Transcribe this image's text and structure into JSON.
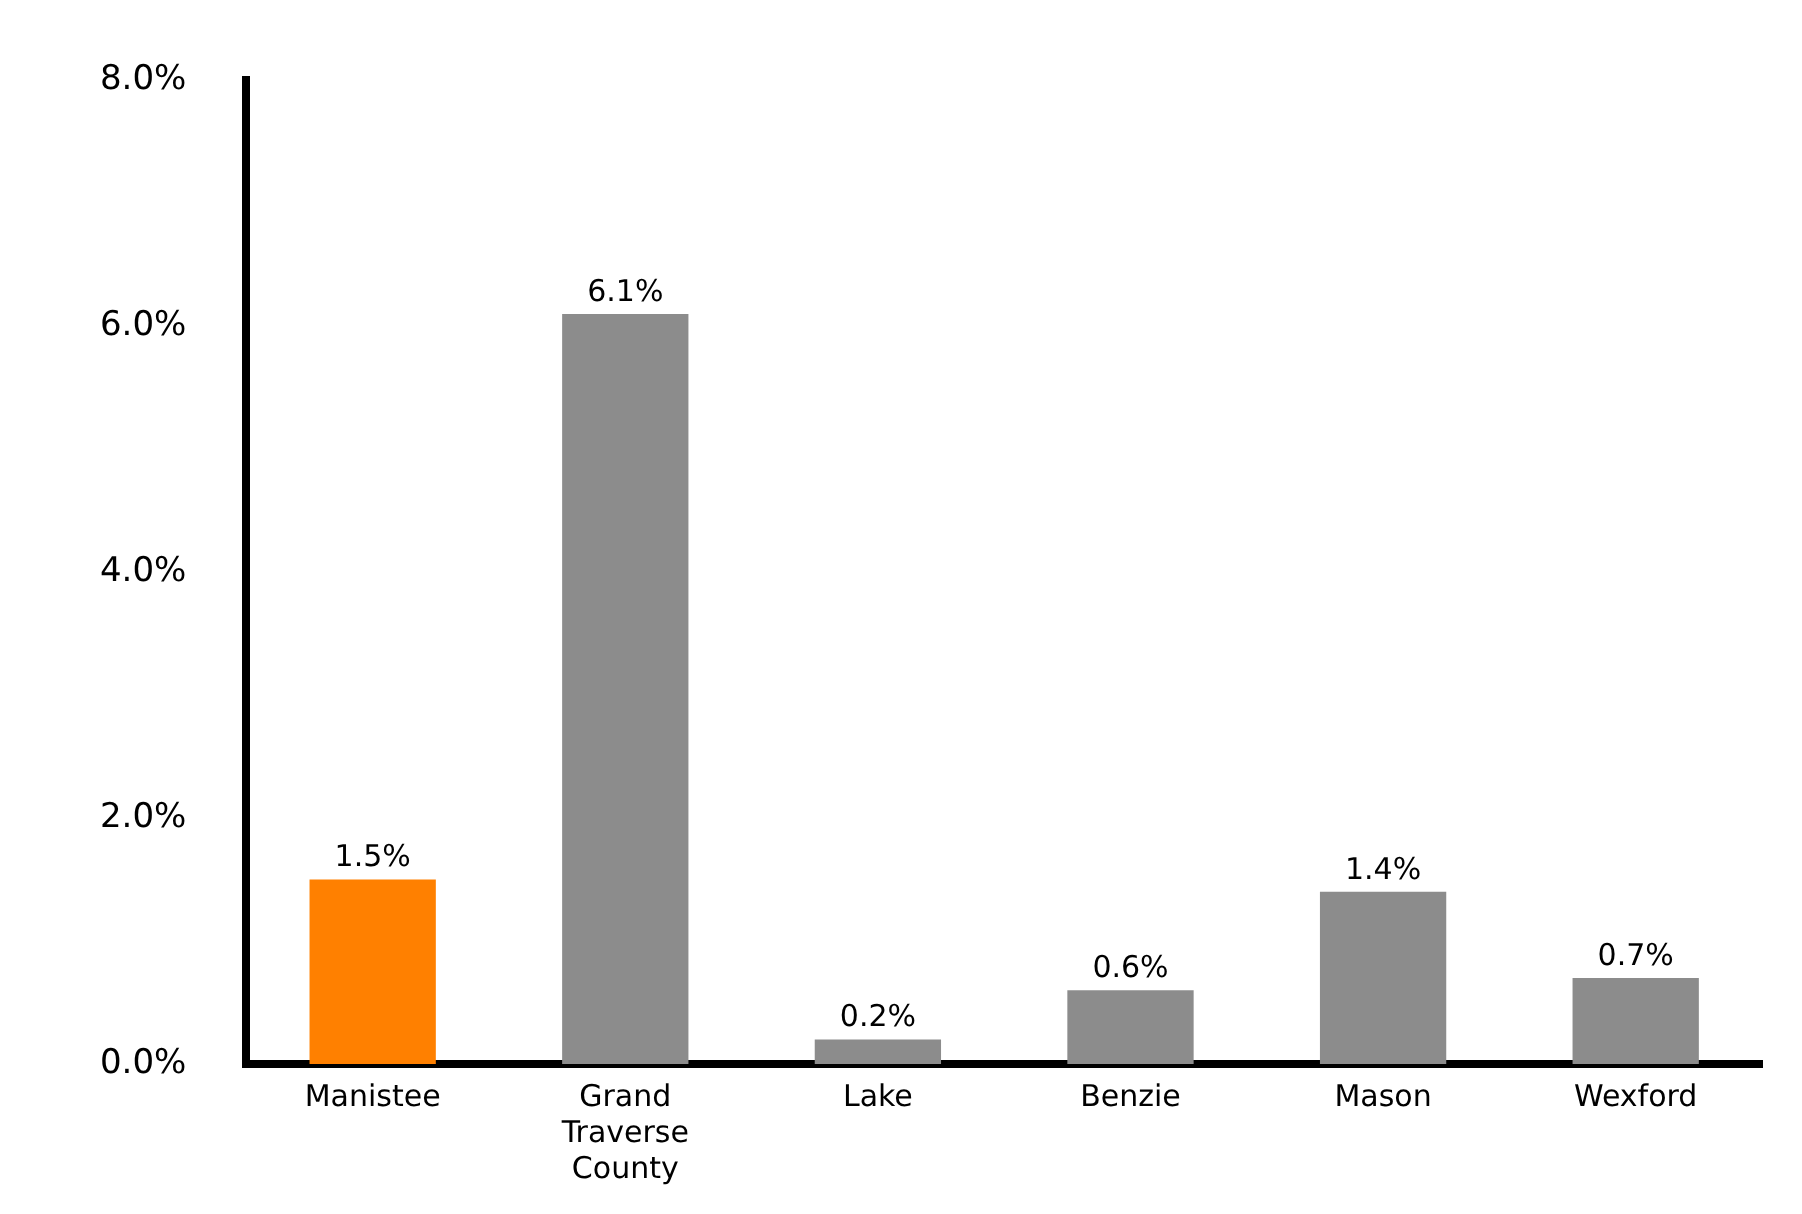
{
  "chart_data": {
    "type": "bar",
    "categories": [
      "Manistee",
      "Grand Traverse County",
      "Lake",
      "Benzie",
      "Mason",
      "Wexford"
    ],
    "values": [
      1.5,
      6.1,
      0.2,
      0.6,
      1.4,
      0.7
    ],
    "colors": [
      "#ff8000",
      "#8c8c8c",
      "#8c8c8c",
      "#8c8c8c",
      "#8c8c8c",
      "#8c8c8c"
    ],
    "value_labels": [
      "1.5%",
      "6.1%",
      "0.2%",
      "0.6%",
      "1.4%",
      "0.7%"
    ],
    "ylim": [
      0,
      8
    ],
    "yticks": [
      {
        "value": 0,
        "label": "0.0%"
      },
      {
        "value": 2,
        "label": "2.0%"
      },
      {
        "value": 4,
        "label": "4.0%"
      },
      {
        "value": 6,
        "label": "6.0%"
      },
      {
        "value": 8,
        "label": "8.0%"
      }
    ],
    "grid": false,
    "legend": false
  }
}
